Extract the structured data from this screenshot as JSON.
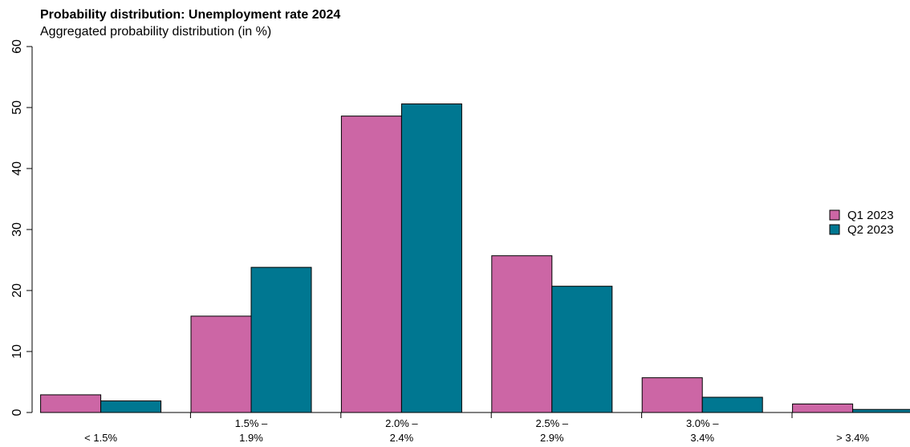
{
  "chart_data": {
    "type": "bar",
    "title": "Probability distribution: Unemployment rate 2024",
    "subtitle": "Aggregated probability distribution (in %)",
    "categories": [
      [
        "< 1.5%"
      ],
      [
        "1.5% –",
        "1.9%"
      ],
      [
        "2.0% –",
        "2.4%"
      ],
      [
        "2.5% –",
        "2.9%"
      ],
      [
        "3.0% –",
        "3.4%"
      ],
      [
        "> 3.4%"
      ]
    ],
    "series": [
      {
        "name": "Q1 2023",
        "color": "#CC66A5",
        "values": [
          2.9,
          15.8,
          48.6,
          25.7,
          5.7,
          1.4
        ]
      },
      {
        "name": "Q2 2023",
        "color": "#007791",
        "values": [
          1.9,
          23.8,
          50.6,
          20.7,
          2.5,
          0.5
        ]
      }
    ],
    "ylim": [
      0,
      60
    ],
    "yticks": [
      0,
      10,
      20,
      30,
      40,
      50,
      60
    ],
    "grid": false,
    "legend_position": "right"
  }
}
